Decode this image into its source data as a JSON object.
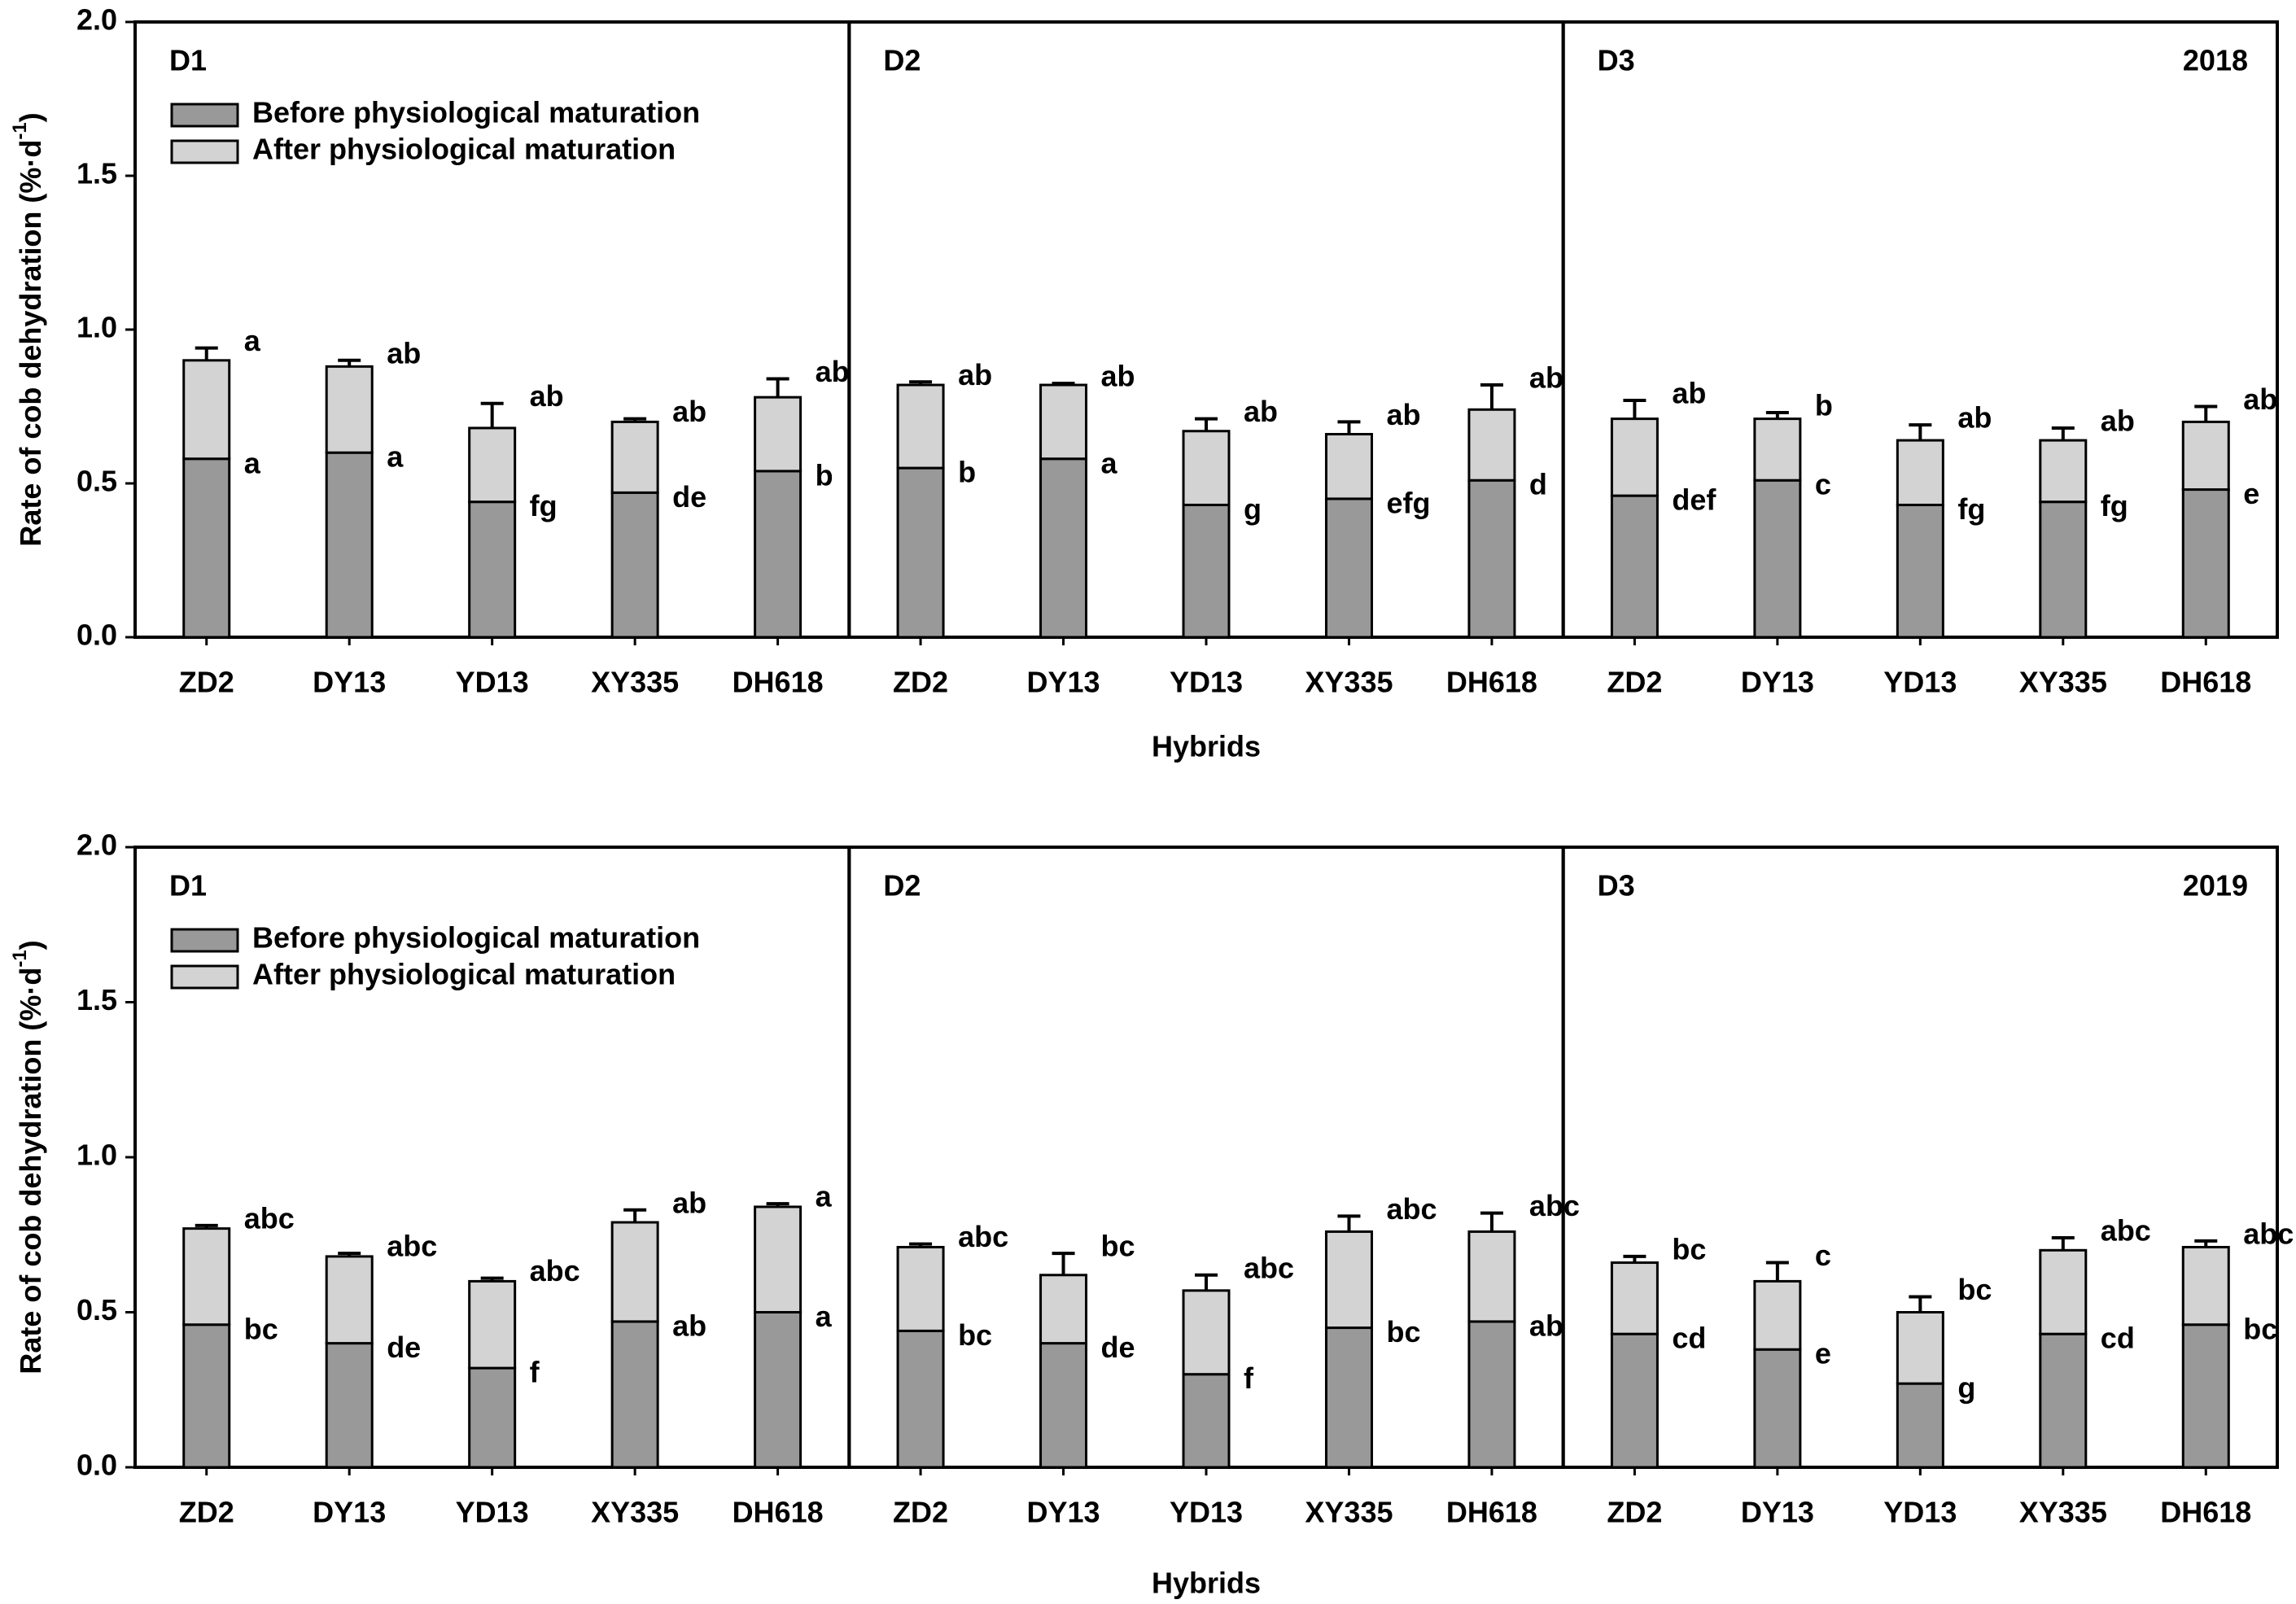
{
  "chart_data": [
    {
      "type": "bar",
      "stacked": true,
      "title": "2018",
      "xlabel": "Hybrids",
      "ylabel": {
        "text": "Rate of cob dehydration  (%·d",
        "superscript": "-1",
        "suffix": ")"
      },
      "ylim": [
        0,
        2
      ],
      "yticks": [
        {
          "value": 0,
          "label": "0.0"
        },
        {
          "value": 0.5,
          "label": "0.5"
        },
        {
          "value": 1,
          "label": "1.0"
        },
        {
          "value": 1.5,
          "label": "1.5"
        },
        {
          "value": 2,
          "label": "2.0"
        }
      ],
      "series": [
        {
          "name": "Before physiological maturation",
          "color": "#999999"
        },
        {
          "name": "After physiological maturation",
          "color": "#d3d3d3"
        }
      ],
      "panels": [
        {
          "label": "D1",
          "categories": [
            "ZD2",
            "DY13",
            "YD13",
            "XY335",
            "DH618"
          ],
          "series": [
            {
              "values": [
                0.58,
                0.6,
                0.44,
                0.47,
                0.54
              ],
              "errors": [
                0.01,
                0.005,
                0.02,
                0.01,
                0.01
              ],
              "letters": [
                "a",
                "a",
                "fg",
                "de",
                "b"
              ]
            },
            {
              "values": [
                0.32,
                0.28,
                0.24,
                0.23,
                0.24
              ],
              "errors": [
                0.04,
                0.02,
                0.08,
                0.01,
                0.06
              ],
              "letters": [
                "a",
                "ab",
                "ab",
                "ab",
                "ab"
              ]
            }
          ]
        },
        {
          "label": "D2",
          "categories": [
            "ZD2",
            "DY13",
            "YD13",
            "XY335",
            "DH618"
          ],
          "series": [
            {
              "values": [
                0.55,
                0.58,
                0.43,
                0.45,
                0.51
              ],
              "errors": [
                0.01,
                0.01,
                0.005,
                0.005,
                0.005
              ],
              "letters": [
                "b",
                "a",
                "g",
                "efg",
                "d"
              ]
            },
            {
              "values": [
                0.27,
                0.24,
                0.24,
                0.21,
                0.23
              ],
              "errors": [
                0.01,
                0.005,
                0.04,
                0.04,
                0.08
              ],
              "letters": [
                "ab",
                "ab",
                "ab",
                "ab",
                "ab"
              ]
            }
          ]
        },
        {
          "label": "D3",
          "categories": [
            "ZD2",
            "DY13",
            "YD13",
            "XY335",
            "DH618"
          ],
          "series": [
            {
              "values": [
                0.46,
                0.51,
                0.43,
                0.44,
                0.48
              ],
              "errors": [
                0.015,
                0.02,
                0.01,
                0.01,
                0.005
              ],
              "letters": [
                "def",
                "c",
                "fg",
                "fg",
                "e"
              ]
            },
            {
              "values": [
                0.25,
                0.2,
                0.21,
                0.2,
                0.22
              ],
              "errors": [
                0.06,
                0.02,
                0.05,
                0.04,
                0.05
              ],
              "letters": [
                "ab",
                "b",
                "ab",
                "ab",
                "ab"
              ]
            }
          ]
        }
      ]
    },
    {
      "type": "bar",
      "stacked": true,
      "title": "2019",
      "xlabel": "Hybrids",
      "ylabel": {
        "text": "Rate of cob dehydration  (%·d",
        "superscript": "-1",
        "suffix": ")"
      },
      "ylim": [
        0,
        2
      ],
      "yticks": [
        {
          "value": 0,
          "label": "0.0"
        },
        {
          "value": 0.5,
          "label": "0.5"
        },
        {
          "value": 1,
          "label": "1.0"
        },
        {
          "value": 1.5,
          "label": "1.5"
        },
        {
          "value": 2,
          "label": "2.0"
        }
      ],
      "series": [
        {
          "name": "Before physiological maturation",
          "color": "#999999"
        },
        {
          "name": "After physiological maturation",
          "color": "#d3d3d3"
        }
      ],
      "panels": [
        {
          "label": "D1",
          "categories": [
            "ZD2",
            "DY13",
            "YD13",
            "XY335",
            "DH618"
          ],
          "series": [
            {
              "values": [
                0.46,
                0.4,
                0.32,
                0.47,
                0.5
              ],
              "errors": [
                0.005,
                0.01,
                0.005,
                0.01,
                0.005
              ],
              "letters": [
                "bc",
                "de",
                "f",
                "ab",
                "a"
              ]
            },
            {
              "values": [
                0.31,
                0.28,
                0.28,
                0.32,
                0.34
              ],
              "errors": [
                0.01,
                0.01,
                0.01,
                0.04,
                0.01
              ],
              "letters": [
                "abc",
                "abc",
                "abc",
                "ab",
                "a"
              ]
            }
          ]
        },
        {
          "label": "D2",
          "categories": [
            "ZD2",
            "DY13",
            "YD13",
            "XY335",
            "DH618"
          ],
          "series": [
            {
              "values": [
                0.44,
                0.4,
                0.3,
                0.45,
                0.47
              ],
              "errors": [
                0.03,
                0.02,
                0.005,
                0.01,
                0.03
              ],
              "letters": [
                "bc",
                "de",
                "f",
                "bc",
                "ab"
              ]
            },
            {
              "values": [
                0.27,
                0.22,
                0.27,
                0.31,
                0.29
              ],
              "errors": [
                0.01,
                0.07,
                0.05,
                0.05,
                0.06
              ],
              "letters": [
                "abc",
                "bc",
                "abc",
                "abc",
                "abc"
              ]
            }
          ]
        },
        {
          "label": "D3",
          "categories": [
            "ZD2",
            "DY13",
            "YD13",
            "XY335",
            "DH618"
          ],
          "series": [
            {
              "values": [
                0.43,
                0.38,
                0.27,
                0.43,
                0.46
              ],
              "errors": [
                0.02,
                0.01,
                0.02,
                0.01,
                0.02
              ],
              "letters": [
                "cd",
                "e",
                "g",
                "cd",
                "bc"
              ]
            },
            {
              "values": [
                0.23,
                0.22,
                0.23,
                0.27,
                0.25
              ],
              "errors": [
                0.02,
                0.06,
                0.05,
                0.04,
                0.02
              ],
              "letters": [
                "bc",
                "c",
                "bc",
                "abc",
                "abc"
              ]
            }
          ]
        }
      ]
    }
  ]
}
